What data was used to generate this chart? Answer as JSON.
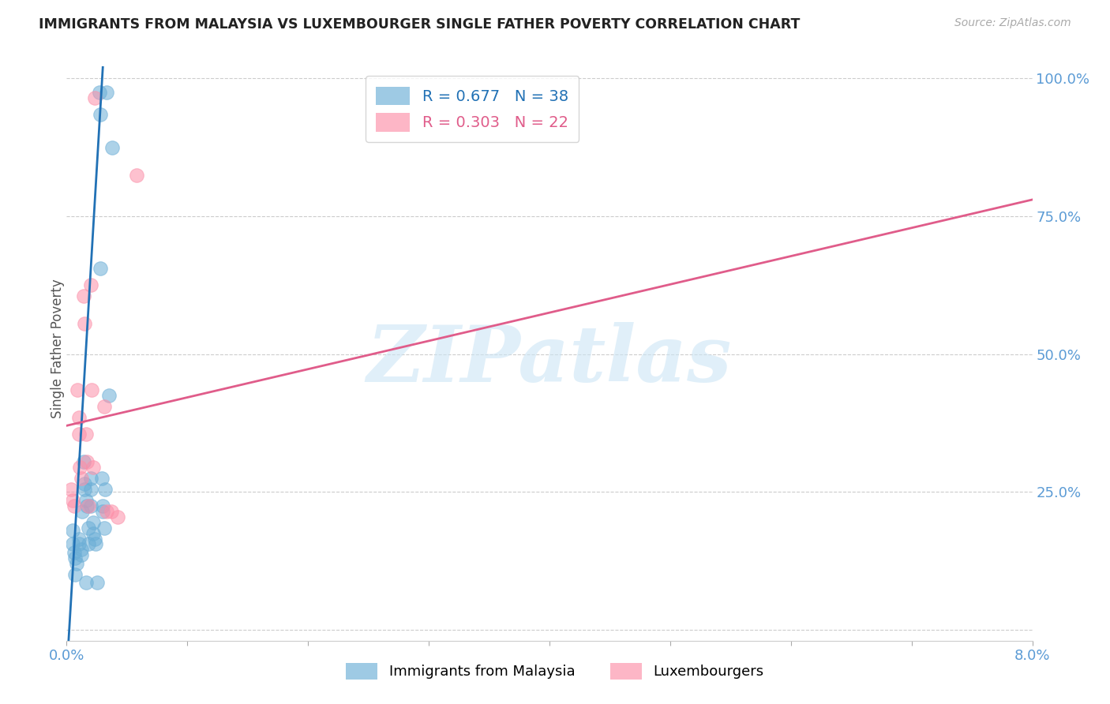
{
  "title": "IMMIGRANTS FROM MALAYSIA VS LUXEMBOURGER SINGLE FATHER POVERTY CORRELATION CHART",
  "source": "Source: ZipAtlas.com",
  "ylabel": "Single Father Poverty",
  "legend_label_blue": "Immigrants from Malaysia",
  "legend_label_pink": "Luxembourgers",
  "r_blue": 0.677,
  "n_blue": 38,
  "r_pink": 0.303,
  "n_pink": 22,
  "blue_scatter": [
    [
      0.0005,
      0.18
    ],
    [
      0.0005,
      0.155
    ],
    [
      0.0006,
      0.14
    ],
    [
      0.0007,
      0.13
    ],
    [
      0.0008,
      0.12
    ],
    [
      0.001,
      0.165
    ],
    [
      0.001,
      0.155
    ],
    [
      0.0012,
      0.145
    ],
    [
      0.0012,
      0.135
    ],
    [
      0.0013,
      0.215
    ],
    [
      0.0015,
      0.265
    ],
    [
      0.0015,
      0.255
    ],
    [
      0.0016,
      0.235
    ],
    [
      0.0017,
      0.225
    ],
    [
      0.0018,
      0.185
    ],
    [
      0.0018,
      0.155
    ],
    [
      0.002,
      0.275
    ],
    [
      0.002,
      0.255
    ],
    [
      0.002,
      0.225
    ],
    [
      0.0022,
      0.195
    ],
    [
      0.0022,
      0.175
    ],
    [
      0.0023,
      0.165
    ],
    [
      0.0024,
      0.155
    ],
    [
      0.0027,
      0.975
    ],
    [
      0.0028,
      0.935
    ],
    [
      0.0028,
      0.655
    ],
    [
      0.0029,
      0.275
    ],
    [
      0.003,
      0.225
    ],
    [
      0.003,
      0.215
    ],
    [
      0.0031,
      0.185
    ],
    [
      0.0033,
      0.975
    ],
    [
      0.0035,
      0.425
    ],
    [
      0.0038,
      0.875
    ],
    [
      0.0016,
      0.085
    ],
    [
      0.0025,
      0.085
    ],
    [
      0.0007,
      0.1
    ],
    [
      0.0032,
      0.255
    ],
    [
      0.0014,
      0.305
    ]
  ],
  "pink_scatter": [
    [
      0.0004,
      0.255
    ],
    [
      0.0005,
      0.235
    ],
    [
      0.0006,
      0.225
    ],
    [
      0.0009,
      0.435
    ],
    [
      0.001,
      0.385
    ],
    [
      0.001,
      0.355
    ],
    [
      0.0011,
      0.295
    ],
    [
      0.0012,
      0.275
    ],
    [
      0.0014,
      0.605
    ],
    [
      0.0015,
      0.555
    ],
    [
      0.0016,
      0.355
    ],
    [
      0.0017,
      0.305
    ],
    [
      0.0018,
      0.225
    ],
    [
      0.002,
      0.625
    ],
    [
      0.0021,
      0.435
    ],
    [
      0.0022,
      0.295
    ],
    [
      0.0023,
      0.965
    ],
    [
      0.0031,
      0.405
    ],
    [
      0.0033,
      0.215
    ],
    [
      0.0037,
      0.215
    ],
    [
      0.0058,
      0.825
    ],
    [
      0.0042,
      0.205
    ]
  ],
  "blue_line_x": [
    0.0,
    0.003
  ],
  "blue_line_y": [
    -0.08,
    1.02
  ],
  "pink_line_x": [
    0.0,
    0.08
  ],
  "pink_line_y": [
    0.37,
    0.78
  ],
  "watermark": "ZIPatlas",
  "bg_color": "#ffffff",
  "blue_color": "#6baed6",
  "pink_color": "#fc8fa8",
  "blue_line_color": "#2171b5",
  "pink_line_color": "#e05c8a",
  "scatter_alpha": 0.55,
  "scatter_size": 160,
  "xlim": [
    0.0,
    0.08
  ],
  "ylim": [
    -0.02,
    1.04
  ],
  "yticks": [
    0.0,
    0.25,
    0.5,
    0.75,
    1.0
  ],
  "ytick_labels_right": [
    "",
    "25.0%",
    "50.0%",
    "75.0%",
    "100.0%"
  ],
  "xticks": [
    0.0,
    0.01,
    0.02,
    0.03,
    0.04,
    0.05,
    0.06,
    0.07,
    0.08
  ],
  "xtick_labels": [
    "0.0%",
    "",
    "",
    "",
    "",
    "",
    "",
    "",
    "8.0%"
  ]
}
